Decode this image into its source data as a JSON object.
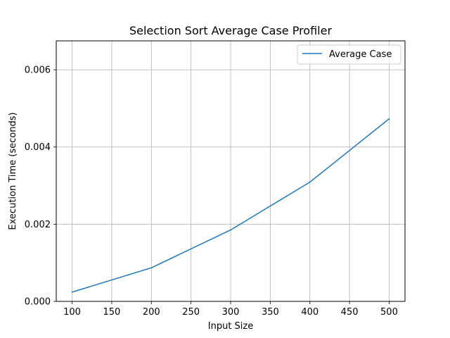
{
  "chart_data": {
    "type": "line",
    "title": "Selection Sort Average Case Profiler",
    "xlabel": "Input Size",
    "ylabel": "Execution Time (seconds)",
    "x": [
      100,
      200,
      300,
      400,
      500
    ],
    "series": [
      {
        "name": "Average Case",
        "color": "#1f77b4",
        "values": [
          0.00024,
          0.00087,
          0.00185,
          0.00309,
          0.00473
        ]
      }
    ],
    "xlim": [
      80,
      520
    ],
    "ylim": [
      0,
      0.00675
    ],
    "xticks": [
      100,
      150,
      200,
      250,
      300,
      350,
      400,
      450,
      500
    ],
    "xtick_labels": [
      "100",
      "150",
      "200",
      "250",
      "300",
      "350",
      "400",
      "450",
      "500"
    ],
    "yticks": [
      0,
      0.002,
      0.004,
      0.006
    ],
    "ytick_labels": [
      "0.000",
      "0.002",
      "0.004",
      "0.006"
    ],
    "grid": true,
    "legend_position": "top-right"
  }
}
